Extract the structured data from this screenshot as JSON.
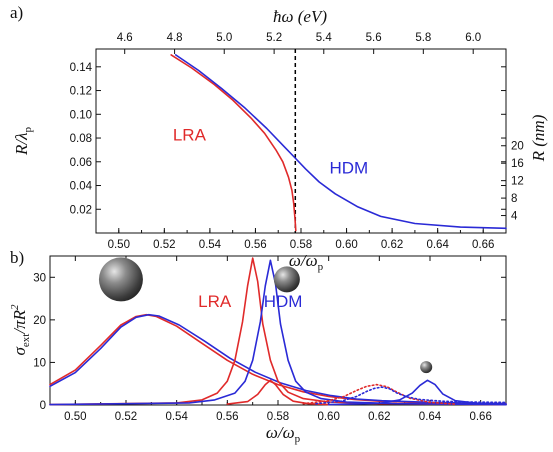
{
  "colors": {
    "lra": "#e02a2a",
    "hdm": "#2a2ad6",
    "axis": "#111111"
  },
  "chart_data": [
    {
      "type": "line",
      "panel_label": "a)",
      "xlabel": "ω/ω",
      "xlabel_sub": "p",
      "ylabel": "R/λ",
      "ylabel_sub": "p",
      "y2label": "R (nm)",
      "x2label": "ħω (eV)",
      "xlim": [
        0.49,
        0.67
      ],
      "ylim": [
        0.0,
        0.155
      ],
      "xticks": [
        "0.50",
        "0.52",
        "0.54",
        "0.56",
        "0.58",
        "0.60",
        "0.62",
        "0.64",
        "0.66"
      ],
      "yticks": [
        "0.02",
        "0.04",
        "0.06",
        "0.08",
        "0.10",
        "0.12",
        "0.14"
      ],
      "top_ticks": [
        {
          "x": 0.5026,
          "label": "4.6"
        },
        {
          "x": 0.5245,
          "label": "4.8"
        },
        {
          "x": 0.5463,
          "label": "5.0"
        },
        {
          "x": 0.5682,
          "label": "5.2"
        },
        {
          "x": 0.59,
          "label": "5.4"
        },
        {
          "x": 0.6119,
          "label": "5.6"
        },
        {
          "x": 0.6337,
          "label": "5.8"
        },
        {
          "x": 0.6556,
          "label": "6.0"
        }
      ],
      "right_ticks": [
        {
          "y": 0.0147,
          "label": "4"
        },
        {
          "y": 0.0294,
          "label": "8"
        },
        {
          "y": 0.0441,
          "label": "12"
        },
        {
          "y": 0.0588,
          "label": "16"
        },
        {
          "y": 0.0735,
          "label": "20"
        }
      ],
      "vline_x": 0.5775,
      "series": [
        {
          "name": "LRA",
          "color": "#e02a2a",
          "x": [
            0.523,
            0.532,
            0.542,
            0.55,
            0.558,
            0.564,
            0.569,
            0.572,
            0.5745,
            0.576,
            0.5768,
            0.5773,
            0.5777
          ],
          "y": [
            0.15,
            0.139,
            0.125,
            0.112,
            0.097,
            0.084,
            0.07,
            0.06,
            0.047,
            0.036,
            0.025,
            0.013,
            0.002
          ]
        },
        {
          "name": "HDM",
          "color": "#2a2ad6",
          "x": [
            0.525,
            0.535,
            0.545,
            0.555,
            0.565,
            0.572,
            0.577,
            0.582,
            0.588,
            0.595,
            0.605,
            0.615,
            0.63,
            0.65,
            0.67
          ],
          "y": [
            0.15,
            0.137,
            0.122,
            0.106,
            0.088,
            0.074,
            0.064,
            0.054,
            0.043,
            0.033,
            0.022,
            0.014,
            0.008,
            0.005,
            0.004
          ]
        }
      ],
      "annotations": [
        {
          "text": "LRA",
          "x": 0.531,
          "y": 0.078,
          "color": "#e02a2a"
        },
        {
          "text": "HDM",
          "x": 0.601,
          "y": 0.05,
          "color": "#2a2ad6"
        }
      ]
    },
    {
      "type": "line",
      "panel_label": "b)",
      "xlabel": "ω/ω",
      "xlabel_sub": "p",
      "ylabel": "σ",
      "ylabel_sub": "ext",
      "ylabel_tail": "/πR",
      "ylabel_sup": "2",
      "xlim": [
        0.49,
        0.67
      ],
      "ylim": [
        0,
        35
      ],
      "xticks": [
        "0.50",
        "0.52",
        "0.54",
        "0.56",
        "0.58",
        "0.60",
        "0.62",
        "0.64",
        "0.66"
      ],
      "yticks": [
        "0",
        "10",
        "20",
        "30"
      ],
      "series": [
        {
          "name": "LRA",
          "color": "#e02a2a",
          "dash": "solid",
          "x": [
            0.49,
            0.5,
            0.51,
            0.518,
            0.524,
            0.528,
            0.532,
            0.54,
            0.55,
            0.56,
            0.57,
            0.58,
            0.59,
            0.6,
            0.61,
            0.62,
            0.64,
            0.67
          ],
          "y": [
            4.8,
            8.2,
            14.0,
            18.8,
            20.8,
            21.2,
            20.8,
            18.5,
            14.5,
            10.5,
            7.2,
            4.8,
            3.1,
            2.0,
            1.3,
            0.9,
            0.5,
            0.3
          ]
        },
        {
          "name": "HDM",
          "color": "#2a2ad6",
          "dash": "solid",
          "x": [
            0.49,
            0.5,
            0.51,
            0.518,
            0.524,
            0.529,
            0.533,
            0.541,
            0.551,
            0.561,
            0.571,
            0.581,
            0.591,
            0.601,
            0.611,
            0.621,
            0.641,
            0.67
          ],
          "y": [
            4.4,
            7.6,
            13.3,
            18.3,
            20.6,
            21.2,
            20.9,
            18.8,
            15.0,
            11.0,
            7.7,
            5.2,
            3.4,
            2.2,
            1.4,
            1.0,
            0.6,
            0.3
          ]
        },
        {
          "name": "LRA",
          "color": "#e02a2a",
          "dash": "solid",
          "x": [
            0.49,
            0.54,
            0.55,
            0.556,
            0.56,
            0.563,
            0.566,
            0.568,
            0.57,
            0.572,
            0.574,
            0.577,
            0.58,
            0.584,
            0.59,
            0.6,
            0.62,
            0.67
          ],
          "y": [
            0.1,
            0.5,
            1.2,
            2.8,
            5.6,
            10.5,
            19.5,
            28.0,
            34.5,
            29.0,
            19.0,
            10.5,
            5.6,
            3.0,
            1.5,
            0.7,
            0.3,
            0.1
          ]
        },
        {
          "name": "HDM",
          "color": "#2a2ad6",
          "dash": "solid",
          "x": [
            0.49,
            0.545,
            0.555,
            0.563,
            0.567,
            0.57,
            0.573,
            0.575,
            0.577,
            0.579,
            0.581,
            0.584,
            0.587,
            0.591,
            0.597,
            0.607,
            0.627,
            0.67
          ],
          "y": [
            0.1,
            0.5,
            1.2,
            2.8,
            5.6,
            10.5,
            19.5,
            28.0,
            34.0,
            28.5,
            19.0,
            10.5,
            5.6,
            3.0,
            1.5,
            0.7,
            0.3,
            0.1
          ]
        },
        {
          "name": "LRA",
          "color": "#e02a2a",
          "dash": "solid",
          "x": [
            0.56,
            0.568,
            0.572,
            0.575,
            0.577,
            0.579,
            0.582,
            0.586,
            0.592,
            0.6
          ],
          "y": [
            0.2,
            0.8,
            2.5,
            4.8,
            5.8,
            4.8,
            2.5,
            0.9,
            0.3,
            0.1
          ]
        },
        {
          "name": "LRA",
          "color": "#e02a2a",
          "dash": "dotted",
          "x": [
            0.59,
            0.6,
            0.606,
            0.611,
            0.615,
            0.619,
            0.623,
            0.627,
            0.632,
            0.64,
            0.65
          ],
          "y": [
            0.3,
            1.0,
            2.0,
            3.4,
            4.4,
            4.8,
            4.3,
            3.0,
            1.6,
            0.6,
            0.2
          ]
        },
        {
          "name": "HDM",
          "color": "#2a2ad6",
          "dash": "dotted",
          "x": [
            0.595,
            0.605,
            0.611,
            0.615,
            0.618,
            0.621,
            0.624,
            0.627,
            0.631,
            0.636,
            0.645,
            0.655,
            0.67
          ],
          "y": [
            0.3,
            0.9,
            2.0,
            3.2,
            3.9,
            4.2,
            3.8,
            2.8,
            1.9,
            1.3,
            0.9,
            0.7,
            0.6
          ]
        },
        {
          "name": "HDM",
          "color": "#2a2ad6",
          "dash": "solid",
          "x": [
            0.6,
            0.62,
            0.628,
            0.633,
            0.636,
            0.639,
            0.642,
            0.645,
            0.65,
            0.66,
            0.67
          ],
          "y": [
            0.1,
            0.4,
            1.2,
            2.8,
            4.6,
            5.8,
            4.8,
            2.6,
            1.0,
            0.3,
            0.1
          ]
        }
      ],
      "annotations": [
        {
          "text": "LRA",
          "x": 0.555,
          "y": 23,
          "color": "#e02a2a"
        },
        {
          "text": "HDM",
          "x": 0.582,
          "y": 23,
          "color": "#2a2ad6"
        }
      ],
      "spheres": [
        {
          "x": 0.518,
          "y": 29.5,
          "size": "large"
        },
        {
          "x": 0.5835,
          "y": 29.5,
          "size": "medium"
        },
        {
          "x": 0.6385,
          "y": 8.9,
          "size": "small"
        }
      ]
    }
  ]
}
